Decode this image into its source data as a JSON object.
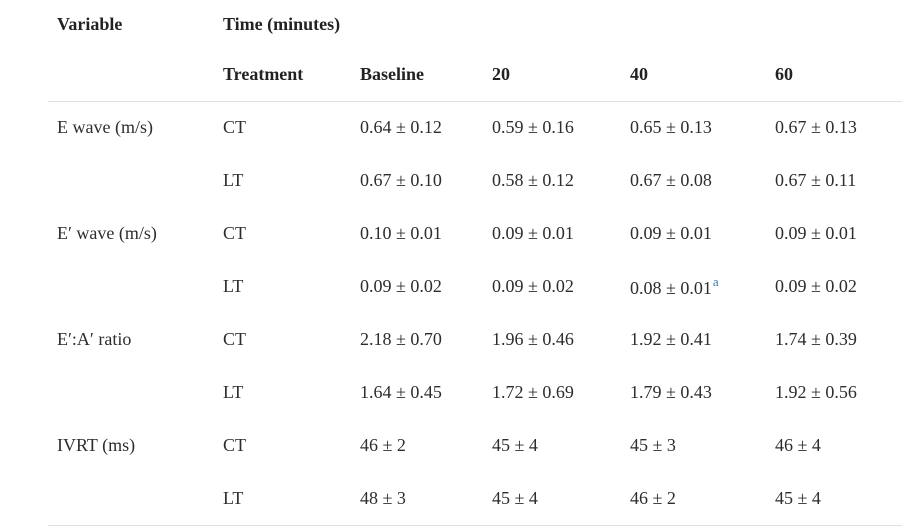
{
  "page": {
    "background": "#ffffff",
    "text_color": "#2d2d2d",
    "rule_color": "#e0e0e0",
    "footnote_link_color": "#3b7fad"
  },
  "table": {
    "header": {
      "variable": "Variable",
      "time_group": "Time (minutes)",
      "sub_headers": [
        "Treatment",
        "Baseline",
        "20",
        "40",
        "60"
      ]
    },
    "rows": [
      {
        "variable": "E wave (m/s)",
        "treatment": "CT",
        "values": [
          "0.64 ± 0.12",
          "0.59 ± 0.16",
          "0.65 ± 0.13",
          "0.67 ± 0.13"
        ]
      },
      {
        "variable": "",
        "treatment": "LT",
        "values": [
          "0.67 ± 0.10",
          "0.58 ± 0.12",
          "0.67 ± 0.08",
          "0.67 ± 0.11"
        ]
      },
      {
        "variable": "E′ wave (m/s)",
        "treatment": "CT",
        "values": [
          "0.10 ± 0.01",
          "0.09 ± 0.01",
          "0.09 ± 0.01",
          "0.09 ± 0.01"
        ]
      },
      {
        "variable": "",
        "treatment": "LT",
        "values": [
          "0.09 ± 0.02",
          "0.09 ± 0.02",
          "0.08 ± 0.01",
          "0.09 ± 0.02"
        ],
        "footnote": {
          "value_index": 2,
          "label": "a"
        }
      },
      {
        "variable": "E′:A′ ratio",
        "treatment": "CT",
        "values": [
          "2.18 ± 0.70",
          "1.96 ± 0.46",
          "1.92 ± 0.41",
          "1.74 ± 0.39"
        ]
      },
      {
        "variable": "",
        "treatment": "LT",
        "values": [
          "1.64 ± 0.45",
          "1.72 ± 0.69",
          "1.79 ± 0.43",
          "1.92 ± 0.56"
        ]
      },
      {
        "variable": "IVRT (ms)",
        "treatment": "CT",
        "values": [
          "46 ± 2",
          "45 ± 4",
          "45 ± 3",
          "46 ± 4"
        ]
      },
      {
        "variable": "",
        "treatment": "LT",
        "values": [
          "48 ± 3",
          "45 ± 4",
          "46 ± 2",
          "45 ± 4"
        ]
      }
    ]
  }
}
